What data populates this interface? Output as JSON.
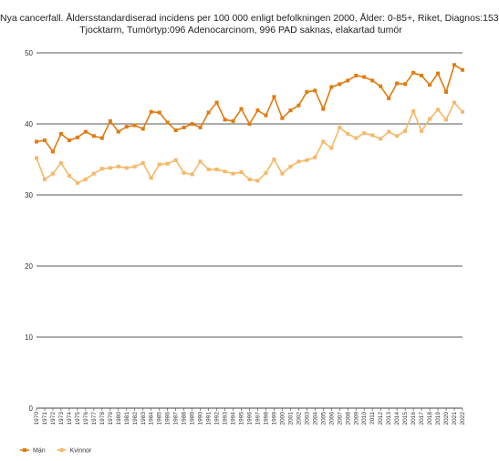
{
  "chart_data": {
    "type": "line",
    "title_lines": [
      "Nya cancerfall. Åldersstandardiserad incidens per 100 000 enligt befolkningen 2000, Ålder: 0-85+, Riket, Diagnos:153",
      "Tjocktarm, Tumörtyp:096 Adenocarcinom, 996 PAD saknas, elakartad tumör"
    ],
    "xlabel": "",
    "ylabel": "",
    "ylim": [
      0,
      50
    ],
    "yticks": [
      0,
      10,
      20,
      30,
      40,
      50
    ],
    "grid": true,
    "legend_position": "bottom-left",
    "x": [
      1970,
      1971,
      1972,
      1973,
      1974,
      1975,
      1976,
      1977,
      1978,
      1979,
      1980,
      1981,
      1982,
      1983,
      1984,
      1985,
      1986,
      1987,
      1988,
      1989,
      1990,
      1991,
      1992,
      1993,
      1994,
      1995,
      1996,
      1997,
      1998,
      1999,
      2000,
      2001,
      2002,
      2003,
      2004,
      2005,
      2006,
      2007,
      2008,
      2009,
      2010,
      2011,
      2012,
      2013,
      2014,
      2015,
      2016,
      2017,
      2018,
      2019,
      2020,
      2021,
      2022
    ],
    "series": [
      {
        "name": "Män",
        "color": "#e07b10",
        "values": [
          37.5,
          37.7,
          36.1,
          38.6,
          37.7,
          38.1,
          38.9,
          38.3,
          38.0,
          40.4,
          38.9,
          39.6,
          39.8,
          39.3,
          41.7,
          41.6,
          40.2,
          39.1,
          39.5,
          40.0,
          39.5,
          41.6,
          43.0,
          40.6,
          40.4,
          42.1,
          40.0,
          41.9,
          41.2,
          43.8,
          40.8,
          41.9,
          42.6,
          44.5,
          44.7,
          42.1,
          45.2,
          45.6,
          46.1,
          46.8,
          46.6,
          46.1,
          45.3,
          43.6,
          45.7,
          45.6,
          47.2,
          46.8,
          45.5,
          47.1,
          44.5,
          48.3,
          47.6
        ]
      },
      {
        "name": "Kvinnor",
        "color": "#f5b868",
        "values": [
          35.2,
          32.2,
          33.0,
          34.5,
          32.7,
          31.7,
          32.2,
          33.0,
          33.7,
          33.8,
          34.0,
          33.8,
          34.0,
          34.5,
          32.4,
          34.3,
          34.4,
          34.9,
          33.1,
          32.9,
          34.7,
          33.6,
          33.6,
          33.3,
          33.0,
          33.2,
          32.2,
          32.0,
          33.1,
          35.0,
          33.0,
          34.0,
          34.7,
          34.9,
          35.3,
          37.5,
          36.6,
          39.5,
          38.6,
          38.0,
          38.7,
          38.4,
          37.9,
          38.9,
          38.3,
          39.0,
          41.8,
          39.0,
          40.7,
          42.0,
          40.6,
          43.0,
          41.7
        ]
      }
    ]
  }
}
